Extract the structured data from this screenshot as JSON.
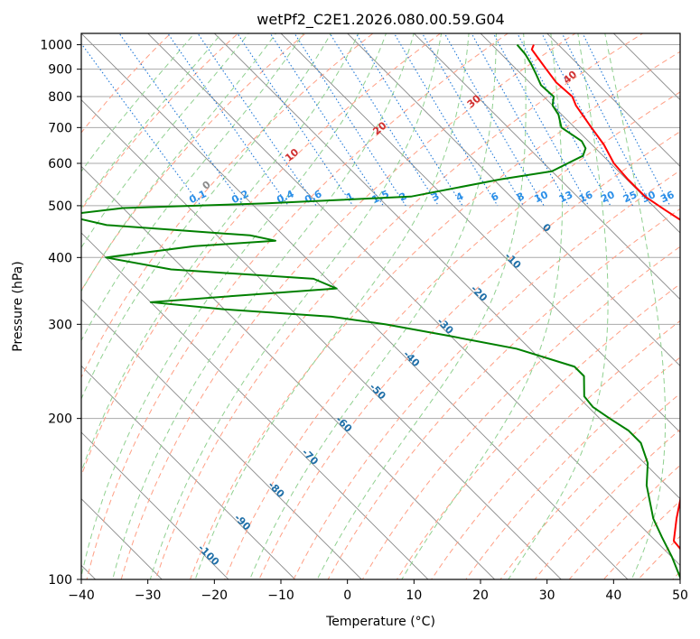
{
  "chart_data": {
    "type": "line",
    "title": "wetPf2_C2E1.2026.080.00.59.G04",
    "xlabel": "Temperature (°C)",
    "ylabel": "Pressure (hPa)",
    "xlim": [
      -40,
      50
    ],
    "ylim": [
      1050,
      100
    ],
    "x_ticks": [
      -40,
      -30,
      -20,
      -10,
      0,
      10,
      20,
      30,
      40,
      50
    ],
    "x_tick_labels": [
      "−40",
      "−30",
      "−20",
      "−10",
      "0",
      "10",
      "20",
      "30",
      "40",
      "50"
    ],
    "y_ticks": [
      100,
      200,
      300,
      400,
      500,
      600,
      700,
      800,
      900,
      1000
    ],
    "y_tick_labels": [
      "100",
      "200",
      "300",
      "400",
      "500",
      "600",
      "700",
      "800",
      "900",
      "1000"
    ],
    "colors": {
      "temperature": "#ff0000",
      "dewpoint": "#008000",
      "isotherm": "#888888",
      "dry_adiabat": "#ff9f85",
      "moist_adiabat": "#90d090",
      "mixing_ratio": "#1f78d8",
      "isotherm_label": "#1f6fa8",
      "mixing_label": "#2b8fe8",
      "adiabat_label": "#d03030"
    },
    "isotherm_labels": [
      {
        "text": "-100",
        "value": -100
      },
      {
        "text": "-90",
        "value": -90
      },
      {
        "text": "-80",
        "value": -80
      },
      {
        "text": "-70",
        "value": -70
      },
      {
        "text": "-60",
        "value": -60
      },
      {
        "text": "-50",
        "value": -50
      },
      {
        "text": "-40",
        "value": -40
      },
      {
        "text": "-30",
        "value": -30
      },
      {
        "text": "-20",
        "value": -20
      },
      {
        "text": "-10",
        "value": -10
      },
      {
        "text": "0",
        "value": 0
      }
    ],
    "mixing_ratio_labels": [
      "0.1",
      "0.2",
      "0.4",
      "0.6",
      "1",
      "1.5",
      "2",
      "3",
      "4",
      "6",
      "8",
      "10",
      "13",
      "16",
      "20",
      "25",
      "30",
      "36"
    ],
    "dry_adiabat_labels": [
      "0",
      "10",
      "20",
      "30",
      "40"
    ],
    "series": [
      {
        "name": "Temperature",
        "points": [
          {
            "p": 1000,
            "t": 26.3
          },
          {
            "p": 980,
            "t": 25.3
          },
          {
            "p": 950,
            "t": 25.0
          },
          {
            "p": 900,
            "t": 24.5
          },
          {
            "p": 850,
            "t": 24.0
          },
          {
            "p": 800,
            "t": 24.3
          },
          {
            "p": 770,
            "t": 23.5
          },
          {
            "p": 700,
            "t": 22.5
          },
          {
            "p": 650,
            "t": 21.8
          },
          {
            "p": 600,
            "t": 20.5
          },
          {
            "p": 560,
            "t": 20.2
          },
          {
            "p": 520,
            "t": 20.2
          },
          {
            "p": 490,
            "t": 21.2
          },
          {
            "p": 470,
            "t": 22.0
          },
          {
            "p": 450,
            "t": 21.8
          },
          {
            "p": 420,
            "t": 20.6
          },
          {
            "p": 390,
            "t": 18.5
          },
          {
            "p": 360,
            "t": 16.8
          },
          {
            "p": 340,
            "t": 16.5
          },
          {
            "p": 300,
            "t": 12.3
          },
          {
            "p": 270,
            "t": 7.5
          },
          {
            "p": 250,
            "t": 4.8
          },
          {
            "p": 225,
            "t": 1.3
          },
          {
            "p": 200,
            "t": -4.5
          },
          {
            "p": 175,
            "t": -10.5
          },
          {
            "p": 150,
            "t": -17.5
          },
          {
            "p": 130,
            "t": -23.5
          },
          {
            "p": 118,
            "t": -27.3
          },
          {
            "p": 112,
            "t": -27.6
          },
          {
            "p": 100,
            "t": -28.0
          }
        ]
      },
      {
        "name": "Dewpoint",
        "points": [
          {
            "p": 1000,
            "t": 23.8
          },
          {
            "p": 960,
            "t": 23.6
          },
          {
            "p": 920,
            "t": 23.0
          },
          {
            "p": 880,
            "t": 22.2
          },
          {
            "p": 840,
            "t": 21.3
          },
          {
            "p": 800,
            "t": 21.5
          },
          {
            "p": 770,
            "t": 20.0
          },
          {
            "p": 740,
            "t": 19.5
          },
          {
            "p": 700,
            "t": 18.0
          },
          {
            "p": 680,
            "t": 18.5
          },
          {
            "p": 660,
            "t": 19.0
          },
          {
            "p": 640,
            "t": 18.5
          },
          {
            "p": 620,
            "t": 17.0
          },
          {
            "p": 580,
            "t": 10.0
          },
          {
            "p": 560,
            "t": 1.0
          },
          {
            "p": 520,
            "t": -15.0
          },
          {
            "p": 505,
            "t": -38.0
          },
          {
            "p": 495,
            "t": -60.0
          },
          {
            "p": 480,
            "t": -70.0
          },
          {
            "p": 460,
            "t": -65.0
          },
          {
            "p": 440,
            "t": -45.0
          },
          {
            "p": 430,
            "t": -42.0
          },
          {
            "p": 420,
            "t": -55.0
          },
          {
            "p": 400,
            "t": -70.0
          },
          {
            "p": 380,
            "t": -62.0
          },
          {
            "p": 365,
            "t": -42.0
          },
          {
            "p": 350,
            "t": -40.0
          },
          {
            "p": 340,
            "t": -55.0
          },
          {
            "p": 330,
            "t": -70.0
          },
          {
            "p": 320,
            "t": -60.0
          },
          {
            "p": 310,
            "t": -45.0
          },
          {
            "p": 300,
            "t": -38.0
          },
          {
            "p": 285,
            "t": -30.0
          },
          {
            "p": 270,
            "t": -22.0
          },
          {
            "p": 250,
            "t": -16.0
          },
          {
            "p": 240,
            "t": -16.0
          },
          {
            "p": 220,
            "t": -19.0
          },
          {
            "p": 210,
            "t": -19.3
          },
          {
            "p": 200,
            "t": -18.5
          },
          {
            "p": 190,
            "t": -17.5
          },
          {
            "p": 180,
            "t": -17.5
          },
          {
            "p": 165,
            "t": -19.5
          },
          {
            "p": 150,
            "t": -23.0
          },
          {
            "p": 130,
            "t": -27.0
          },
          {
            "p": 120,
            "t": -28.5
          },
          {
            "p": 110,
            "t": -30.0
          },
          {
            "p": 100,
            "t": -32.0
          }
        ]
      }
    ]
  }
}
